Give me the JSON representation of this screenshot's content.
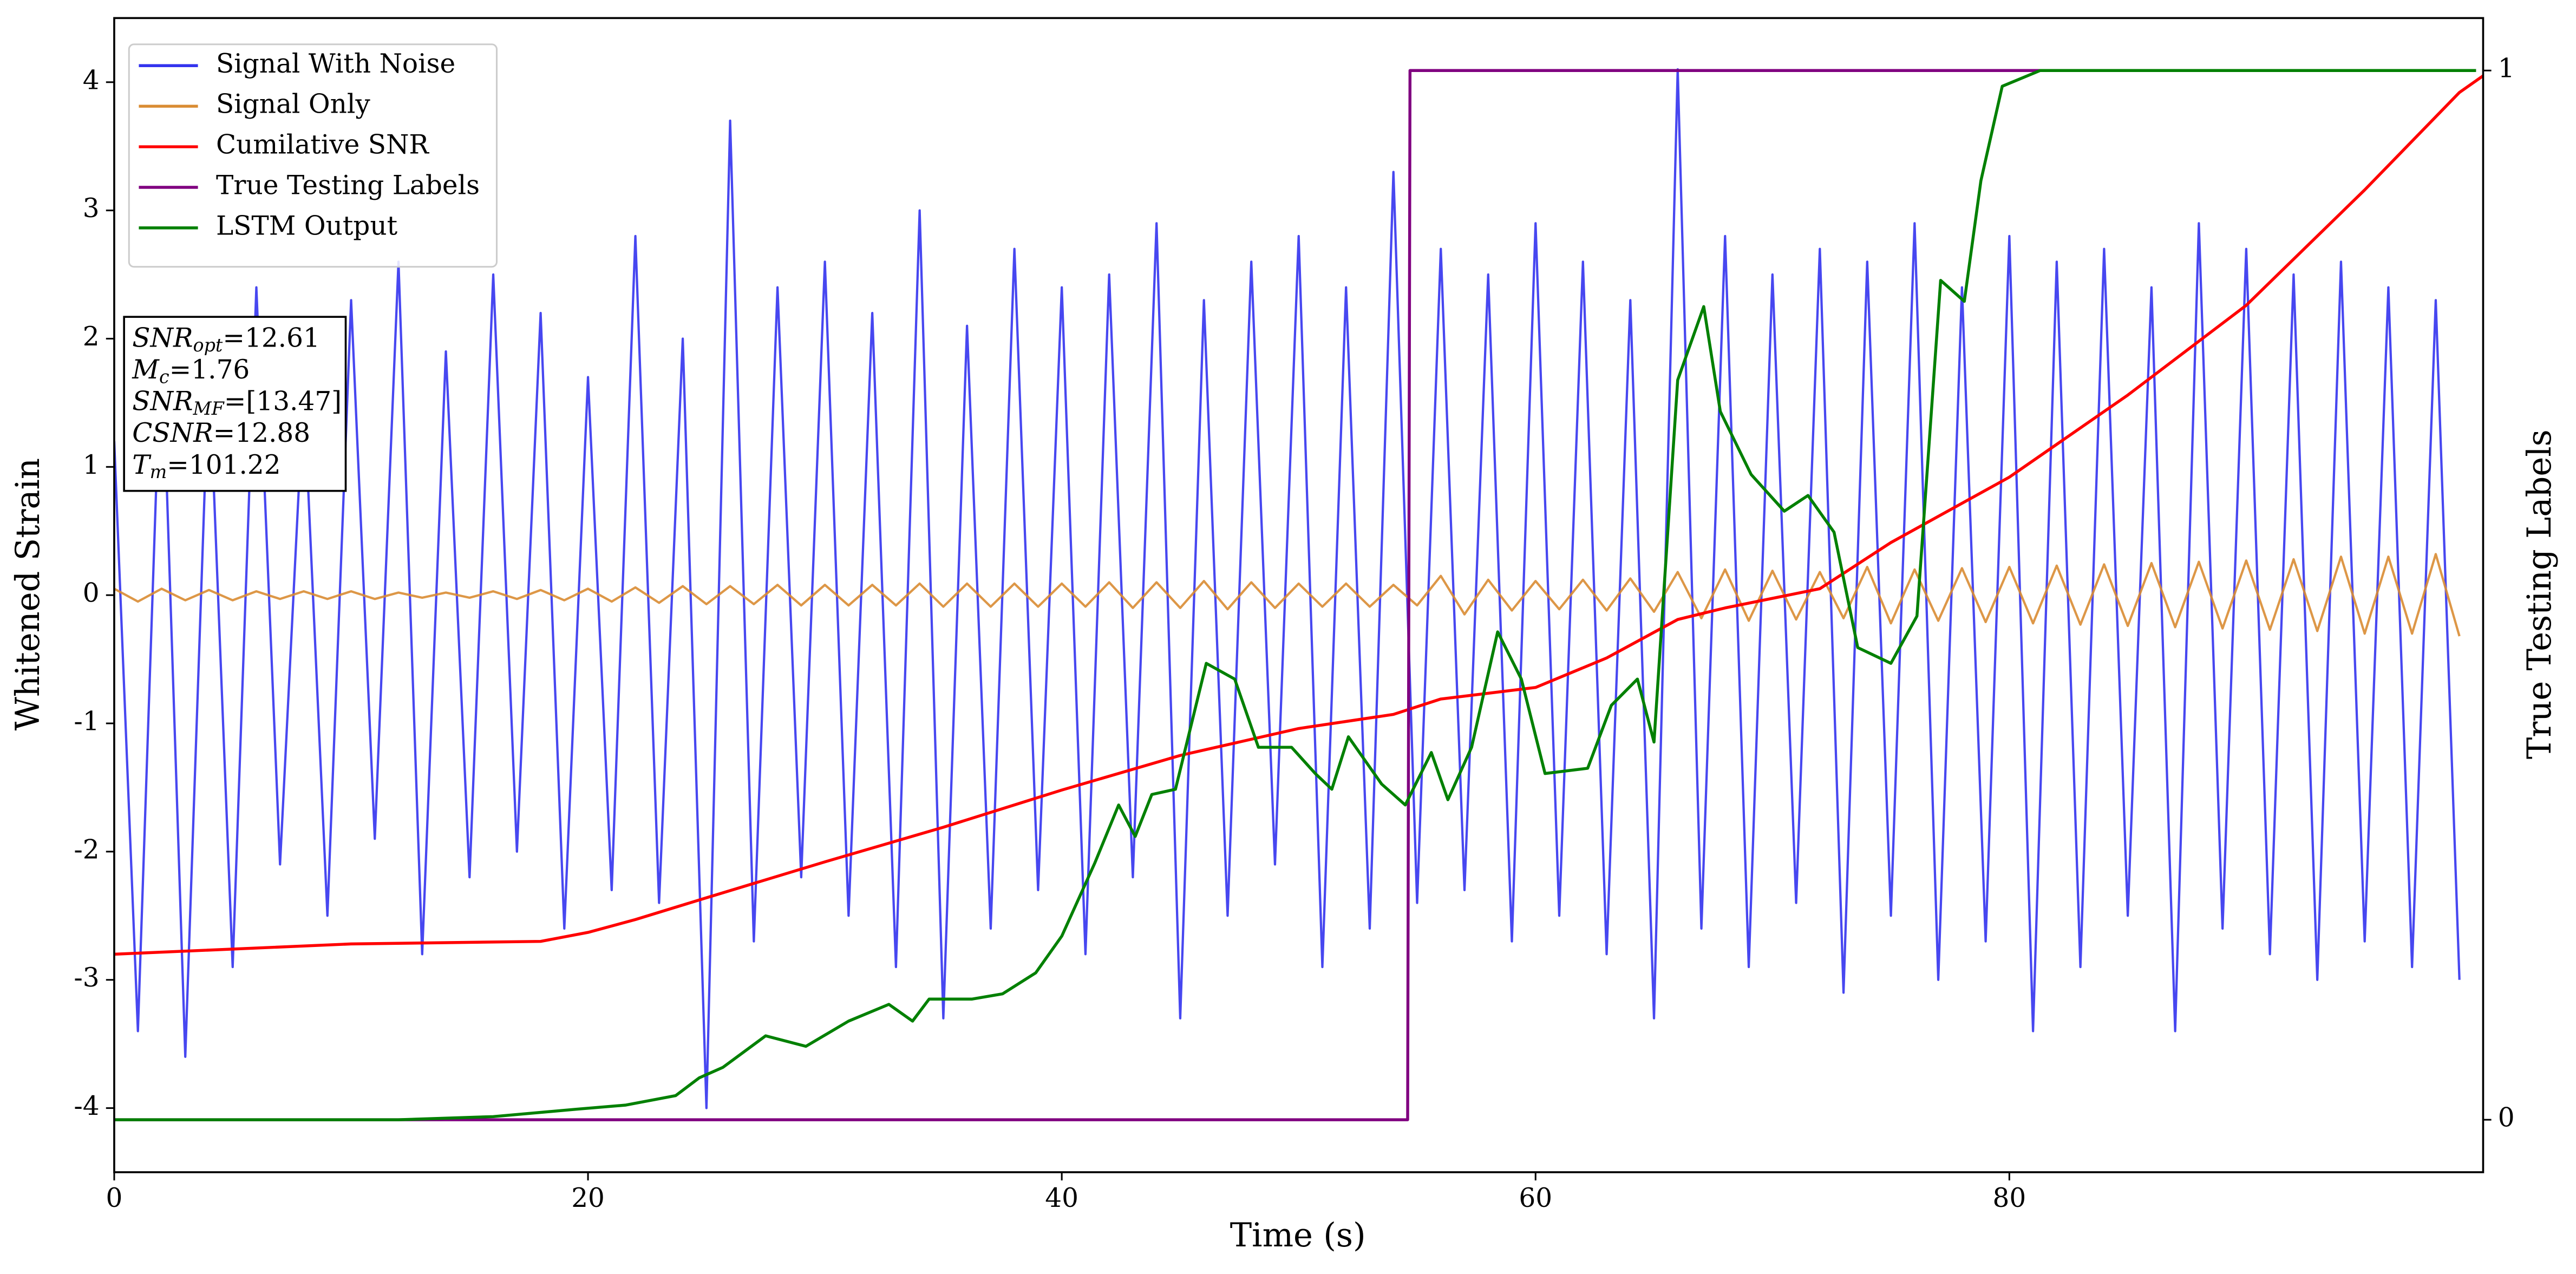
{
  "chart_data": {
    "type": "line",
    "xlabel": "Time (s)",
    "ylabel": "Whitened Strain",
    "y2label": "True Testing Labels",
    "xlim": [
      0,
      100
    ],
    "xticks": [
      0,
      20,
      40,
      60,
      80
    ],
    "ylim": [
      -4.5,
      4.5
    ],
    "yticks": [
      -4,
      -3,
      -2,
      -1,
      0,
      1,
      2,
      3,
      4
    ],
    "y2lim": [
      -0.05,
      1.05
    ],
    "y2ticks": [
      0,
      1
    ],
    "legend": "upper left",
    "series": [
      {
        "name": "Signal With Noise",
        "color": "#3333ee",
        "x": [
          0,
          1,
          2,
          3,
          4,
          5,
          6,
          7,
          8,
          9,
          10,
          11,
          12,
          13,
          14,
          15,
          16,
          17,
          18,
          19,
          20,
          21,
          22,
          23,
          24,
          25,
          26,
          27,
          28,
          29,
          30,
          31,
          32,
          33,
          34,
          35,
          36,
          37,
          38,
          39,
          40,
          41,
          42,
          43,
          44,
          45,
          46,
          47,
          48,
          49,
          50,
          51,
          52,
          53,
          54,
          55,
          56,
          57,
          58,
          59,
          60,
          61,
          62,
          63,
          64,
          65,
          66,
          67,
          68,
          69,
          70,
          71,
          72,
          73,
          74,
          75,
          76,
          77,
          78,
          79,
          80,
          81,
          82,
          83,
          84,
          85,
          86,
          87,
          88,
          89,
          90,
          91,
          92,
          93,
          94,
          95,
          96,
          97,
          98,
          99
        ],
        "values": [
          1.2,
          -3.4,
          2.1,
          -3.6,
          1.8,
          -2.9,
          2.4,
          -2.1,
          1.6,
          -2.5,
          2.3,
          -1.9,
          2.6,
          -2.8,
          1.9,
          -2.2,
          2.5,
          -2.0,
          2.2,
          -2.6,
          1.7,
          -2.3,
          2.8,
          -2.4,
          2.0,
          -4.0,
          3.7,
          -2.7,
          2.4,
          -2.2,
          2.6,
          -2.5,
          2.2,
          -2.9,
          3.0,
          -3.3,
          2.1,
          -2.6,
          2.7,
          -2.3,
          2.4,
          -2.8,
          2.5,
          -2.2,
          2.9,
          -3.3,
          2.3,
          -2.5,
          2.6,
          -2.1,
          2.8,
          -2.9,
          2.4,
          -2.6,
          3.3,
          -2.4,
          2.7,
          -2.3,
          2.5,
          -2.7,
          2.9,
          -2.5,
          2.6,
          -2.8,
          2.3,
          -3.3,
          4.1,
          -2.6,
          2.8,
          -2.9,
          2.5,
          -2.4,
          2.7,
          -3.1,
          2.6,
          -2.5,
          2.9,
          -3.0,
          2.4,
          -2.7,
          2.8,
          -3.4,
          2.6,
          -2.9,
          2.7,
          -2.5,
          2.4,
          -3.4,
          2.9,
          -2.6,
          2.7,
          -2.8,
          2.5,
          -3.0,
          2.6,
          -2.7,
          2.4,
          -2.9,
          2.3,
          -3.0
        ]
      },
      {
        "name": "Signal Only",
        "color": "#d98c33",
        "x": [
          0,
          1,
          2,
          3,
          4,
          5,
          6,
          7,
          8,
          9,
          10,
          11,
          12,
          13,
          14,
          15,
          16,
          17,
          18,
          19,
          20,
          21,
          22,
          23,
          24,
          25,
          26,
          27,
          28,
          29,
          30,
          31,
          32,
          33,
          34,
          35,
          36,
          37,
          38,
          39,
          40,
          41,
          42,
          43,
          44,
          45,
          46,
          47,
          48,
          49,
          50,
          51,
          52,
          53,
          54,
          55,
          56,
          57,
          58,
          59,
          60,
          61,
          62,
          63,
          64,
          65,
          66,
          67,
          68,
          69,
          70,
          71,
          72,
          73,
          74,
          75,
          76,
          77,
          78,
          79,
          80,
          81,
          82,
          83,
          84,
          85,
          86,
          87,
          88,
          89,
          90,
          91,
          92,
          93,
          94,
          95,
          96,
          97,
          98,
          99
        ],
        "values": [
          0.05,
          -0.05,
          0.05,
          -0.04,
          0.04,
          -0.04,
          0.03,
          -0.03,
          0.03,
          -0.03,
          0.03,
          -0.03,
          0.02,
          -0.02,
          0.02,
          -0.02,
          0.03,
          -0.03,
          0.04,
          -0.04,
          0.05,
          -0.05,
          0.06,
          -0.06,
          0.07,
          -0.07,
          0.07,
          -0.07,
          0.08,
          -0.08,
          0.08,
          -0.08,
          0.08,
          -0.08,
          0.09,
          -0.09,
          0.09,
          -0.09,
          0.09,
          -0.09,
          0.09,
          -0.09,
          0.1,
          -0.1,
          0.1,
          -0.1,
          0.11,
          -0.11,
          0.1,
          -0.1,
          0.09,
          -0.09,
          0.09,
          -0.09,
          0.08,
          -0.08,
          0.15,
          -0.15,
          0.12,
          -0.12,
          0.11,
          -0.11,
          0.12,
          -0.12,
          0.13,
          -0.13,
          0.18,
          -0.18,
          0.2,
          -0.2,
          0.19,
          -0.19,
          0.18,
          -0.18,
          0.22,
          -0.22,
          0.2,
          -0.2,
          0.21,
          -0.21,
          0.22,
          -0.22,
          0.23,
          -0.23,
          0.24,
          -0.24,
          0.25,
          -0.25,
          0.26,
          -0.26,
          0.27,
          -0.27,
          0.28,
          -0.28,
          0.3,
          -0.3,
          0.3,
          -0.3,
          0.32,
          -0.32
        ]
      },
      {
        "name": "Cumilative SNR",
        "color": "#ff0000",
        "x": [
          0,
          10,
          18,
          20,
          22,
          25,
          30,
          35,
          40,
          45,
          50,
          54,
          56,
          60,
          63,
          66,
          68,
          72,
          75,
          80,
          85,
          90,
          95,
          99,
          100
        ],
        "values": [
          -2.8,
          -2.72,
          -2.7,
          -2.63,
          -2.53,
          -2.36,
          -2.08,
          -1.81,
          -1.52,
          -1.25,
          -1.04,
          -0.93,
          -0.81,
          -0.72,
          -0.49,
          -0.19,
          -0.1,
          0.05,
          0.41,
          0.92,
          1.56,
          2.26,
          3.16,
          3.92,
          4.05
        ]
      },
      {
        "name": "True Testing Labels",
        "color": "#800080",
        "axis": "y2",
        "x": [
          0,
          54.6,
          54.7,
          99.7
        ],
        "values": [
          0,
          0,
          1,
          1
        ]
      },
      {
        "name": "LSTM Output",
        "color": "#008000",
        "axis": "y2",
        "x": [
          0,
          12,
          16,
          19.5,
          21.6,
          23.7,
          24.7,
          25.7,
          27.5,
          29.2,
          31,
          32.7,
          33.7,
          34.4,
          36.2,
          37.5,
          38.9,
          40,
          41.4,
          42.4,
          43.1,
          43.8,
          44.8,
          46.1,
          47.3,
          48.3,
          49.7,
          50.7,
          51.4,
          52.1,
          53.5,
          54.5,
          55.6,
          56.3,
          57.3,
          58.4,
          59.4,
          60.4,
          62.2,
          63.2,
          64.3,
          65,
          66,
          67.1,
          67.8,
          69.1,
          70.5,
          71.5,
          72.6,
          73.6,
          75,
          76.1,
          77.1,
          78.1,
          78.8,
          79.7,
          81.3,
          99.7
        ],
        "values": [
          0,
          0,
          0.003,
          0.01,
          0.014,
          0.023,
          0.04,
          0.05,
          0.08,
          0.07,
          0.094,
          0.11,
          0.094,
          0.115,
          0.115,
          0.12,
          0.14,
          0.175,
          0.245,
          0.3,
          0.27,
          0.31,
          0.315,
          0.435,
          0.42,
          0.355,
          0.355,
          0.33,
          0.315,
          0.365,
          0.32,
          0.3,
          0.35,
          0.305,
          0.355,
          0.465,
          0.42,
          0.33,
          0.335,
          0.395,
          0.42,
          0.36,
          0.705,
          0.775,
          0.675,
          0.615,
          0.58,
          0.595,
          0.56,
          0.45,
          0.435,
          0.48,
          0.8,
          0.78,
          0.895,
          0.985,
          1.0,
          1.0
        ]
      }
    ],
    "annotations": [
      {
        "symbol": "SNR",
        "subscript": "opt",
        "text": "=12.61"
      },
      {
        "symbol": "M",
        "subscript": "c",
        "text": "=1.76"
      },
      {
        "symbol": "SNR",
        "subscript": "MF",
        "text": "=[13.47]"
      },
      {
        "symbol": "CSNR",
        "text": "=12.88"
      },
      {
        "symbol": "T",
        "subscript": "m",
        "text": "=101.22"
      }
    ]
  }
}
